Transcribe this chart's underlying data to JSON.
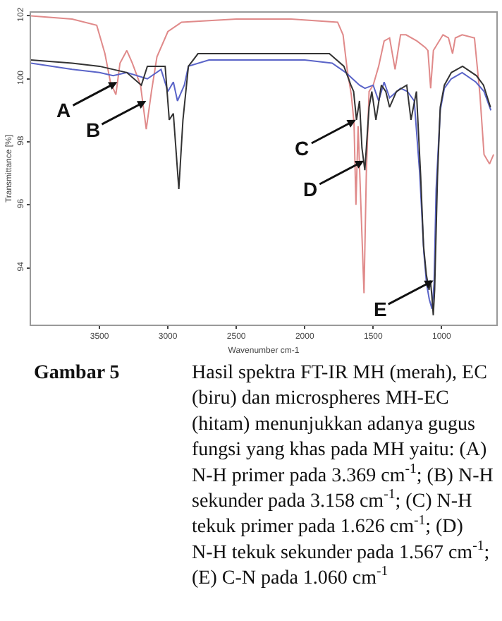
{
  "chart_data": {
    "type": "line",
    "xlabel": "Wavenumber cm-1",
    "ylabel": "Transmittance [%]",
    "xlim": [
      4000,
      600
    ],
    "xticks": [
      3500,
      3000,
      2500,
      2000,
      1500,
      1000
    ],
    "ylim": [
      92.2,
      102.1
    ],
    "yticks": [
      94,
      96,
      98,
      100,
      102
    ],
    "legend": false,
    "marker": "none",
    "line_style": "solid",
    "series": [
      {
        "color": "#e08a8a",
        "x": [
          4000,
          3700,
          3520,
          3460,
          3420,
          3380,
          3350,
          3300,
          3260,
          3200,
          3158,
          3120,
          3080,
          3000,
          2900,
          2500,
          2100,
          1760,
          1720,
          1690,
          1660,
          1640,
          1626,
          1610,
          1590,
          1567,
          1550,
          1530,
          1500,
          1460,
          1420,
          1380,
          1340,
          1300,
          1260,
          1180,
          1120,
          1100,
          1080,
          1060,
          990,
          950,
          920,
          900,
          850,
          760,
          720,
          690,
          650,
          620
        ],
        "values": [
          102.0,
          101.9,
          101.7,
          100.8,
          99.9,
          99.5,
          100.5,
          100.9,
          100.5,
          99.8,
          98.4,
          99.6,
          100.7,
          101.5,
          101.8,
          101.9,
          101.9,
          101.8,
          101.4,
          100.3,
          99.5,
          98.6,
          96.0,
          98.5,
          96.0,
          93.2,
          97.0,
          99.6,
          99.8,
          100.4,
          101.2,
          101.3,
          100.3,
          101.4,
          101.4,
          101.2,
          101.0,
          100.9,
          99.7,
          100.9,
          101.4,
          101.3,
          100.8,
          101.3,
          101.4,
          101.3,
          99.5,
          97.6,
          97.3,
          97.6
        ]
      },
      {
        "color": "#5a64c8",
        "x": [
          4000,
          3700,
          3500,
          3400,
          3300,
          3150,
          3050,
          3000,
          2960,
          2930,
          2880,
          2850,
          2700,
          2500,
          2300,
          2000,
          1800,
          1700,
          1650,
          1600,
          1560,
          1500,
          1460,
          1420,
          1380,
          1300,
          1250,
          1200,
          1160,
          1130,
          1110,
          1090,
          1070,
          1055,
          1040,
          1010,
          980,
          930,
          850,
          750,
          690,
          640
        ],
        "values": [
          100.5,
          100.3,
          100.2,
          100.1,
          100.2,
          100.0,
          100.3,
          99.6,
          99.9,
          99.3,
          99.8,
          100.4,
          100.6,
          100.6,
          100.6,
          100.6,
          100.5,
          100.2,
          100.0,
          99.8,
          99.7,
          99.8,
          99.3,
          99.9,
          99.4,
          99.7,
          99.6,
          99.3,
          97.0,
          94.5,
          93.5,
          93.0,
          92.7,
          93.5,
          96.5,
          99.0,
          99.7,
          100.0,
          100.2,
          99.9,
          99.6,
          99.0
        ]
      },
      {
        "color": "#333333",
        "x": [
          4000,
          3700,
          3500,
          3400,
          3300,
          3194,
          3150,
          3080,
          3020,
          2990,
          2960,
          2920,
          2890,
          2850,
          2780,
          2500,
          2200,
          1820,
          1714,
          1663,
          1643,
          1622,
          1600,
          1582,
          1561,
          1530,
          1510,
          1480,
          1440,
          1408,
          1380,
          1330,
          1255,
          1224,
          1184,
          1153,
          1132,
          1112,
          1092,
          1082,
          1071,
          1061,
          1051,
          1030,
          1010,
          980,
          929,
          847,
          745,
          694,
          643
        ],
        "values": [
          100.6,
          100.5,
          100.4,
          100.3,
          100.2,
          99.8,
          100.4,
          100.4,
          100.4,
          98.7,
          98.9,
          96.5,
          98.7,
          100.4,
          100.8,
          100.8,
          100.8,
          100.8,
          100.4,
          99.8,
          99.6,
          98.7,
          99.3,
          97.8,
          97.1,
          99.1,
          99.6,
          98.7,
          99.8,
          99.6,
          99.1,
          99.6,
          99.8,
          98.7,
          99.6,
          96.9,
          94.7,
          93.8,
          93.3,
          93.6,
          93.1,
          92.5,
          93.3,
          96.9,
          99.1,
          99.8,
          100.2,
          100.4,
          100.1,
          99.8,
          99.1
        ]
      }
    ],
    "annotations": [
      {
        "text": "A",
        "x": 3369,
        "y": 99.9
      },
      {
        "text": "B",
        "x": 3158,
        "y": 99.3
      },
      {
        "text": "C",
        "x": 1626,
        "y": 98.7
      },
      {
        "text": "D",
        "x": 1567,
        "y": 97.4
      },
      {
        "text": "E",
        "x": 1060,
        "y": 93.6
      },
      "Gambar 5",
      "Hasil spektra FT-IR MH (merah), EC (biru) dan microspheres MH-EC (hitam) menunjukkan adanya gugus fungsi yang khas pada MH yaitu: (A) N-H primer pada 3.369 cm$^{-1}$; (B) N-H sekunder pada 3.158 cm$^{-1}$; (C) N-H tekuk primer pada 1.626 cm$^{-1}$; (D) N-H tekuk sekunder pada 1.567 cm$^{-1}$; (E) C-N pada 1.060 cm$^{-1}$"
    ]
  }
}
